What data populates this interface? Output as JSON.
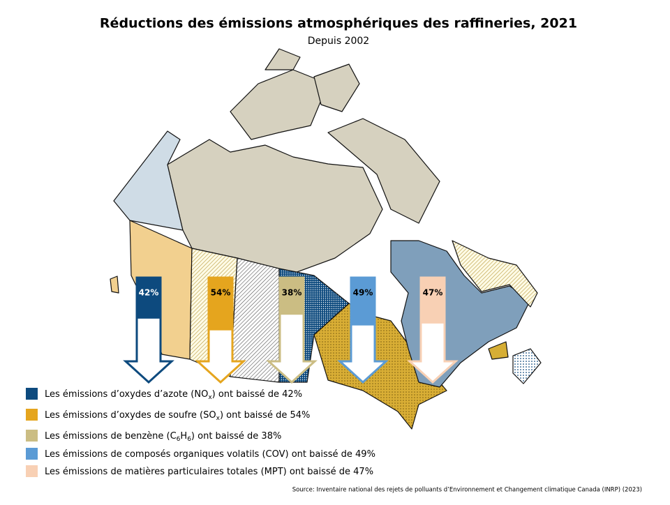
{
  "chart_data": {
    "type": "arrow",
    "title": "Réductions des émissions atmosphériques des raffineries, 2021",
    "subtitle": "Depuis 2002",
    "source": "Source: Inventaire national des rejets de polluants d’Environnement et Changement climatique Canada (INRP) (2023)",
    "categories": [
      [
        "Les émissions d’oxydes d’azote (NO",
        "x",
        ") ont baissé de 42%"
      ],
      [
        "Les émissions d’oxydes de soufre (SO",
        "x",
        ") ont baissé de 54%"
      ],
      [
        "Les émissions de benzène (C",
        "6",
        "H",
        "6",
        ") ont baissé de 38%"
      ],
      [
        "Les émissions de composés organiques volatils (COV) ont baissé de 49%"
      ],
      [
        "Les émissions de matières particulaires totales (MPT) ont baissé de 47%"
      ]
    ],
    "values": [
      42,
      54,
      38,
      49,
      47
    ],
    "value_labels": [
      "42%",
      "54%",
      "38%",
      "49%",
      "47%"
    ],
    "colors": [
      "#0d4a7e",
      "#e5a51e",
      "#cbbd83",
      "#5b9bd5",
      "#f8d0b4"
    ]
  }
}
